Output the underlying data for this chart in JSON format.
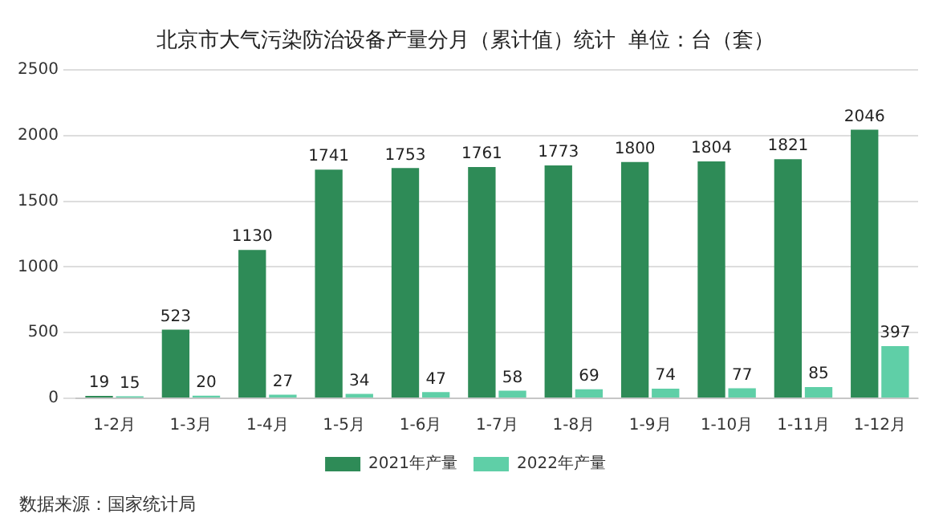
{
  "chart_data": {
    "type": "bar",
    "title": "北京市大气污染防治设备产量分月（累计值）统计  单位：台（套）",
    "categories": [
      "1-2月",
      "1-3月",
      "1-4月",
      "1-5月",
      "1-6月",
      "1-7月",
      "1-8月",
      "1-9月",
      "1-10月",
      "1-11月",
      "1-12月"
    ],
    "series": [
      {
        "name": "2021年产量",
        "color": "#2e8b57",
        "values": [
          19,
          523,
          1130,
          1741,
          1753,
          1761,
          1773,
          1800,
          1804,
          1821,
          2046
        ]
      },
      {
        "name": "2022年产量",
        "color": "#5fcfa7",
        "values": [
          15,
          20,
          27,
          34,
          47,
          58,
          69,
          74,
          77,
          85,
          397
        ]
      }
    ],
    "ylim": [
      0,
      2500
    ],
    "yticks": [
      0,
      500,
      1000,
      1500,
      2000,
      2500
    ],
    "grid": "y",
    "legend": "bottom",
    "data_labels": true,
    "annotations": [
      "数据来源：国家统计局"
    ]
  }
}
